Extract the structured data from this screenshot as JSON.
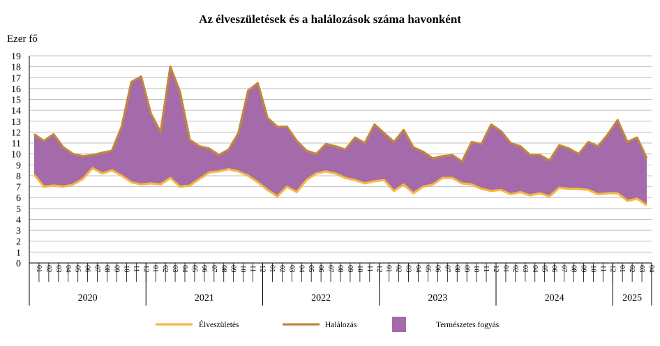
{
  "chart_data": {
    "type": "area",
    "title": "Az élveszületések és a halálozások száma havonként",
    "ylabel": "Ezer fő",
    "xlabel": "",
    "ylim": [
      0,
      19
    ],
    "yticks": [
      0,
      1,
      2,
      3,
      4,
      5,
      6,
      7,
      8,
      9,
      10,
      11,
      12,
      13,
      14,
      15,
      16,
      17,
      18,
      19
    ],
    "grid": true,
    "legend_position": "bottom",
    "months": [
      "01",
      "02",
      "03",
      "04",
      "05",
      "06",
      "07",
      "08",
      "09",
      "10",
      "11",
      "12",
      "01",
      "02",
      "03",
      "04",
      "05",
      "06",
      "07",
      "08",
      "09",
      "10",
      "11",
      "12",
      "01",
      "02",
      "03",
      "04",
      "05",
      "06",
      "07",
      "08",
      "09",
      "10",
      "11",
      "12",
      "01",
      "02",
      "03",
      "04",
      "05",
      "06",
      "07",
      "08",
      "09",
      "10",
      "11",
      "12",
      "01",
      "02",
      "03",
      "04",
      "05",
      "06",
      "07",
      "08",
      "09",
      "10",
      "11",
      "12",
      "01",
      "02",
      "03",
      "04"
    ],
    "years": [
      {
        "label": "2020",
        "months": 12
      },
      {
        "label": "2021",
        "months": 12
      },
      {
        "label": "2022",
        "months": 12
      },
      {
        "label": "2023",
        "months": 12
      },
      {
        "label": "2024",
        "months": 12
      },
      {
        "label": "2025",
        "months": 4
      }
    ],
    "series": [
      {
        "name": "Élveszületés",
        "color": "#f5b942",
        "values": [
          8.1,
          7.0,
          7.1,
          7.0,
          7.2,
          7.7,
          8.7,
          8.2,
          8.5,
          8.0,
          7.4,
          7.2,
          7.3,
          7.2,
          7.8,
          7.0,
          7.1,
          7.7,
          8.3,
          8.4,
          8.6,
          8.4,
          8.0,
          7.4,
          6.7,
          6.1,
          7.0,
          6.5,
          7.6,
          8.2,
          8.4,
          8.2,
          7.8,
          7.6,
          7.3,
          7.5,
          7.6,
          6.6,
          7.2,
          6.4,
          7.0,
          7.2,
          7.8,
          7.8,
          7.3,
          7.2,
          6.8,
          6.6,
          6.7,
          6.3,
          6.5,
          6.2,
          6.4,
          6.1,
          6.9,
          6.8,
          6.8,
          6.7,
          6.3,
          6.4,
          6.4,
          5.7,
          5.9,
          5.3
        ]
      },
      {
        "name": "Halálozás",
        "color": "#c0883e",
        "values": [
          11.8,
          11.2,
          11.8,
          10.6,
          10.0,
          9.8,
          9.9,
          10.1,
          10.3,
          12.5,
          16.6,
          17.1,
          13.7,
          12.0,
          18.0,
          15.7,
          11.3,
          10.7,
          10.5,
          9.9,
          10.4,
          11.9,
          15.8,
          16.5,
          13.3,
          12.5,
          12.5,
          11.2,
          10.3,
          10.0,
          10.9,
          10.7,
          10.4,
          11.5,
          11.0,
          12.7,
          11.9,
          11.1,
          12.2,
          10.6,
          10.2,
          9.6,
          9.8,
          9.9,
          9.3,
          11.1,
          10.9,
          12.7,
          12.1,
          11.0,
          10.7,
          9.9,
          9.9,
          9.4,
          10.8,
          10.5,
          10.0,
          11.1,
          10.7,
          11.8,
          13.1,
          11.1,
          11.5,
          9.6
        ]
      }
    ],
    "fill_series": {
      "name": "Természetes fogyás",
      "color": "#a56aaa"
    }
  }
}
